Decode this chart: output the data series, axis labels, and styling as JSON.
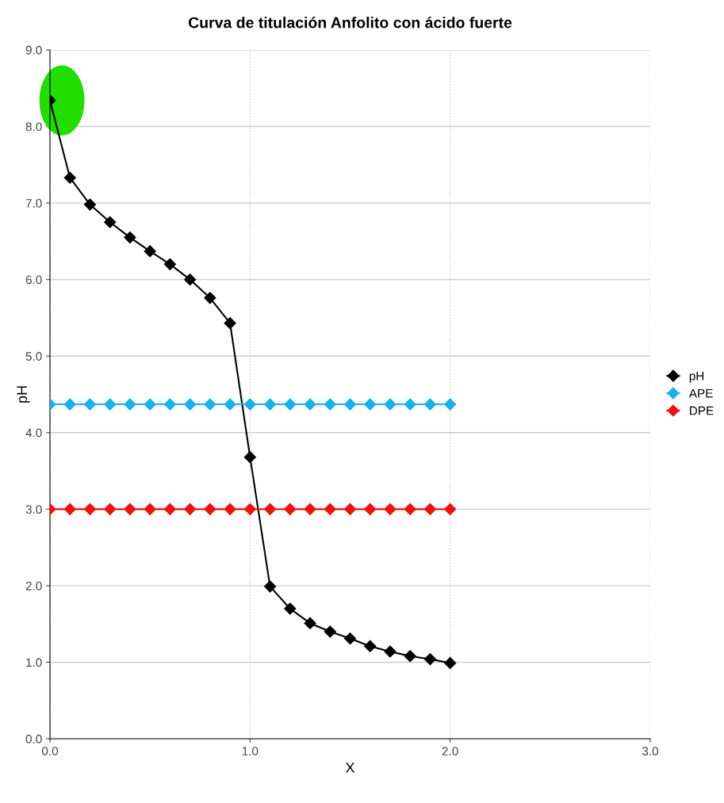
{
  "chart_data": {
    "type": "line",
    "title": "Curva de titulación Anfolito con ácido fuerte",
    "xlabel": "X",
    "ylabel": "pH",
    "x": [
      0,
      0.1,
      0.2,
      0.3,
      0.4,
      0.5,
      0.6,
      0.7,
      0.8,
      0.9,
      1.0,
      1.1,
      1.2,
      1.3,
      1.4,
      1.5,
      1.6,
      1.7,
      1.8,
      1.9,
      2.0
    ],
    "series": [
      {
        "name": "pH",
        "color": "#000000",
        "values": [
          8.34,
          7.33,
          6.98,
          6.75,
          6.55,
          6.37,
          6.2,
          6.0,
          5.76,
          5.43,
          3.68,
          1.99,
          1.7,
          1.51,
          1.4,
          1.31,
          1.21,
          1.14,
          1.08,
          1.04,
          0.99
        ]
      },
      {
        "name": "APE",
        "color": "#1ab0ec",
        "values": [
          4.37,
          4.37,
          4.37,
          4.37,
          4.37,
          4.37,
          4.37,
          4.37,
          4.37,
          4.37,
          4.37,
          4.37,
          4.37,
          4.37,
          4.37,
          4.37,
          4.37,
          4.37,
          4.37,
          4.37,
          4.37
        ]
      },
      {
        "name": "DPE",
        "color": "#ee1111",
        "values": [
          3.0,
          3.0,
          3.0,
          3.0,
          3.0,
          3.0,
          3.0,
          3.0,
          3.0,
          3.0,
          3.0,
          3.0,
          3.0,
          3.0,
          3.0,
          3.0,
          3.0,
          3.0,
          3.0,
          3.0,
          3.0
        ]
      }
    ],
    "xlim": [
      0,
      3
    ],
    "xticks": [
      {
        "value": 0,
        "label": "0.0"
      },
      {
        "value": 1,
        "label": "1.0"
      },
      {
        "value": 2,
        "label": "2.0"
      },
      {
        "value": 3,
        "label": "3.0"
      }
    ],
    "ylim": [
      0,
      9
    ],
    "yticks": [
      {
        "value": 0,
        "label": "0.0"
      },
      {
        "value": 1,
        "label": "1.0"
      },
      {
        "value": 2,
        "label": "2.0"
      },
      {
        "value": 3,
        "label": "3.0"
      },
      {
        "value": 4,
        "label": "4.0"
      },
      {
        "value": 5,
        "label": "5.0"
      },
      {
        "value": 6,
        "label": "6.0"
      },
      {
        "value": 7,
        "label": "7.0"
      },
      {
        "value": 8,
        "label": "8.0"
      },
      {
        "value": 9,
        "label": "9.0"
      }
    ],
    "grid": true,
    "legend": "right",
    "marker": "diamond",
    "line_style": "solid"
  }
}
